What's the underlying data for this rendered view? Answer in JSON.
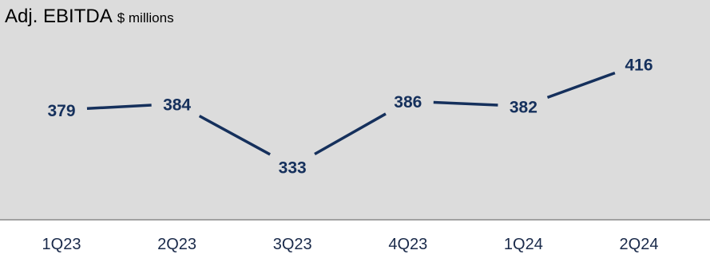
{
  "chart_data": {
    "type": "line",
    "title": "Adj. EBITDA",
    "subtitle": "$ millions",
    "categories": [
      "1Q23",
      "2Q23",
      "3Q23",
      "4Q23",
      "1Q24",
      "2Q24"
    ],
    "values": [
      379,
      384,
      333,
      386,
      382,
      416
    ],
    "data_labels": [
      "379",
      "384",
      "333",
      "386",
      "382",
      "416"
    ],
    "legend": "none",
    "grid": false,
    "colors": {
      "plot_background": "#dcdcdc",
      "line": "#15305c",
      "label": "#15305c",
      "axis": "#8a8a8a"
    }
  }
}
